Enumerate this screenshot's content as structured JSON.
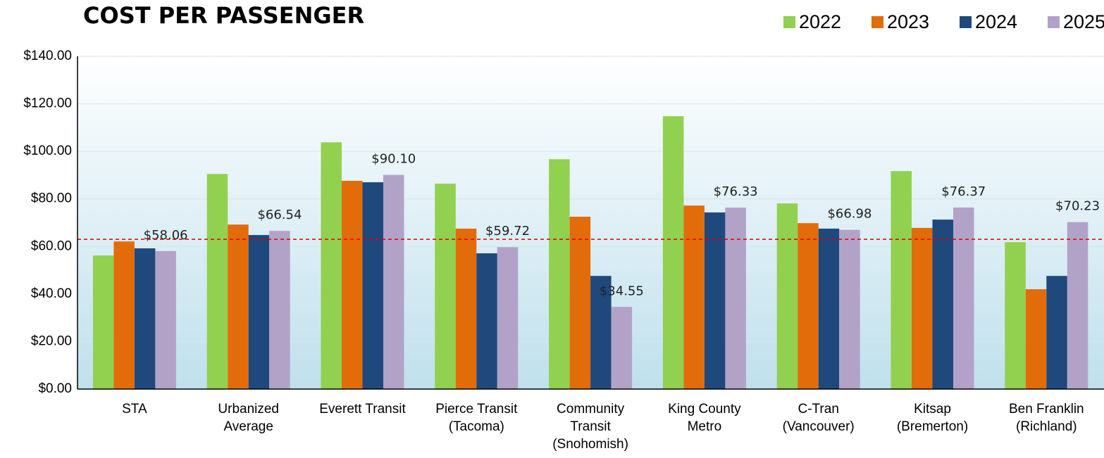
{
  "chart_data": {
    "type": "bar",
    "title": "COST PER PASSENGER",
    "categories": [
      [
        "STA"
      ],
      [
        "Urbanized",
        "Average"
      ],
      [
        "Everett Transit"
      ],
      [
        "Pierce Transit",
        "(Tacoma)"
      ],
      [
        "Community",
        "Transit",
        "(Snohomish)"
      ],
      [
        "King County",
        "Metro"
      ],
      [
        "C-Tran",
        "(Vancouver)"
      ],
      [
        "Kitsap",
        "(Bremerton)"
      ],
      [
        "Ben Franklin",
        "(Richland)"
      ]
    ],
    "series": [
      {
        "name": "2022",
        "color": "#92d050",
        "values": [
          56.2,
          90.5,
          103.8,
          86.4,
          96.7,
          114.8,
          78.1,
          91.7,
          61.8
        ]
      },
      {
        "name": "2023",
        "color": "#e36c0a",
        "values": [
          62.1,
          69.2,
          87.6,
          67.5,
          72.5,
          77.2,
          69.8,
          67.8,
          42.0
        ]
      },
      {
        "name": "2024",
        "color": "#1f497d",
        "values": [
          59.2,
          64.8,
          87.0,
          57.1,
          47.6,
          74.3,
          67.5,
          71.3,
          47.6
        ]
      },
      {
        "name": "2025",
        "color": "#b3a2c7",
        "values": [
          58.06,
          66.54,
          90.1,
          59.72,
          34.55,
          76.33,
          66.98,
          76.37,
          70.23
        ],
        "value_labels": [
          "$58.06",
          "$66.54",
          "$90.10",
          "$59.72",
          "$34.55",
          "$76.33",
          "$66.98",
          "$76.37",
          "$70.23"
        ]
      }
    ],
    "ylim": [
      0,
      140
    ],
    "yticks": [
      {
        "value": 0,
        "label": "$0.00"
      },
      {
        "value": 20,
        "label": "$20.00"
      },
      {
        "value": 40,
        "label": "$40.00"
      },
      {
        "value": 60,
        "label": "$60.00"
      },
      {
        "value": 80,
        "label": "$80.00"
      },
      {
        "value": 100,
        "label": "$100.00"
      },
      {
        "value": 120,
        "label": "$120.00"
      },
      {
        "value": 140,
        "label": "$140.00"
      }
    ],
    "grid": true,
    "legend": "top-right",
    "reference_line": {
      "value": 63,
      "color": "#e00000"
    }
  }
}
